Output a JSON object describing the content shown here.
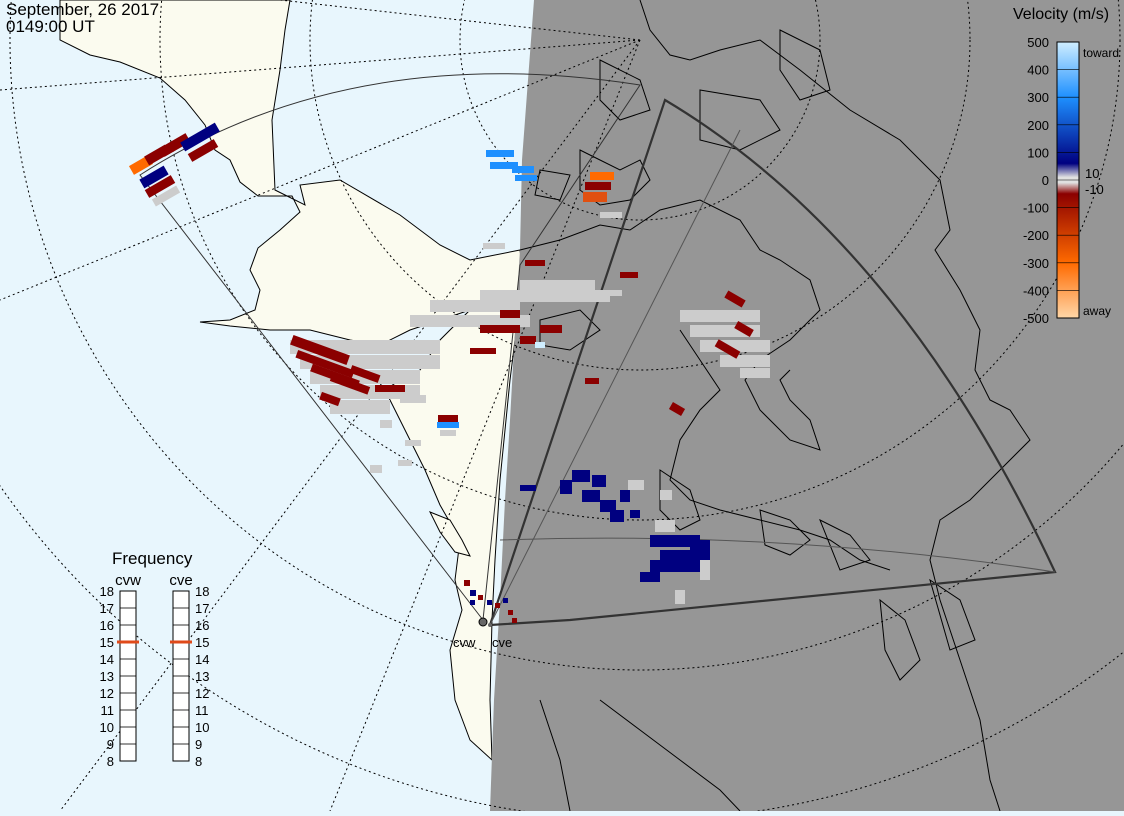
{
  "header": {
    "date": "September, 26 2017",
    "time": "0149:00 UT"
  },
  "velocity_legend": {
    "title": "Velocity (m/s)",
    "ticks": [
      "500",
      "400",
      "300",
      "200",
      "100",
      "0",
      "-100",
      "-200",
      "-300",
      "-400",
      "-500"
    ],
    "inner_ticks": [
      "10",
      "-10"
    ],
    "toward_label": "toward",
    "away_label": "away",
    "colors": {
      "toward_light": "#cfeeff",
      "toward_mid": "#1e90ff",
      "toward_dark": "#000080",
      "zero": "#e0e0e0",
      "away_dark": "#8b0000",
      "away_mid": "#ff6a00",
      "away_light": "#ffd7a8"
    }
  },
  "frequency_legend": {
    "title": "Frequency",
    "radars": [
      {
        "code": "cvw",
        "frequency": 15
      },
      {
        "code": "cve",
        "frequency": 15
      }
    ],
    "ticks": [
      "18",
      "17",
      "16",
      "15",
      "14",
      "13",
      "12",
      "11",
      "10",
      "9",
      "8"
    ]
  },
  "radar_labels": [
    "cvw",
    "cve"
  ],
  "colors": {
    "ocean": "#e8f6fd",
    "land_day": "#fbfbef",
    "night": "#969696",
    "ground_scatter": "#cccccc",
    "grid": "#000000",
    "coast": "#000000"
  }
}
